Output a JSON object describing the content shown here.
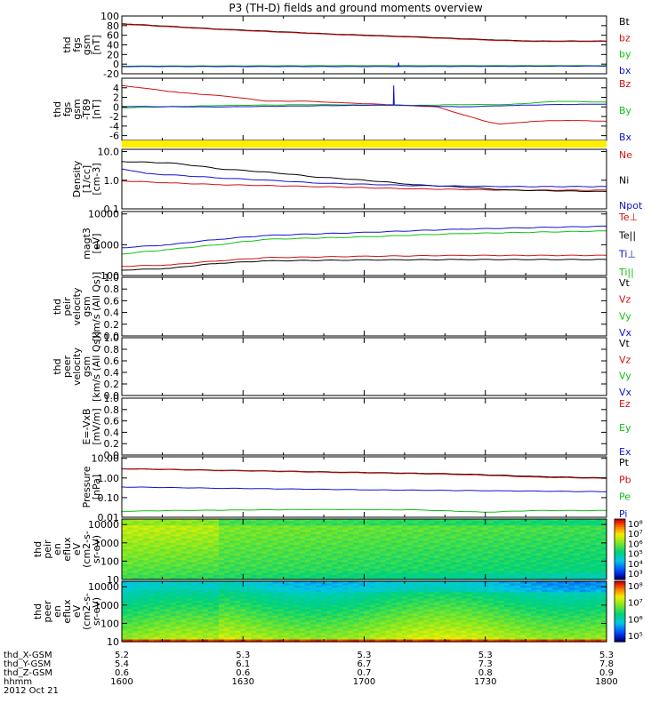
{
  "title": "P3 (TH-D) fields and ground moments overview",
  "colors": {
    "black": "#000000",
    "red": "#d01010",
    "green": "#10c010",
    "blue": "#1010d0",
    "yellow": "#ffee00"
  },
  "chart_data": [
    {
      "id": "fgs",
      "type": "line",
      "ylabel": [
        "thd",
        "fgs",
        "gsm",
        "[nT]"
      ],
      "ylim": [
        -20,
        100
      ],
      "ticks": [
        -20,
        0,
        20,
        40,
        60,
        80,
        100
      ],
      "tick_labels": [
        "-20",
        "0",
        "20",
        "40",
        "60",
        "80",
        "100"
      ],
      "series": [
        {
          "name": "Bt",
          "color": "black",
          "points": [
            [
              0,
              84
            ],
            [
              0.2,
              73
            ],
            [
              0.45,
              62
            ],
            [
              0.6,
              57
            ],
            [
              0.75,
              51
            ],
            [
              0.85,
              48
            ],
            [
              1,
              48
            ]
          ]
        },
        {
          "name": "bz",
          "color": "red",
          "points": [
            [
              0,
              83
            ],
            [
              0.2,
              72
            ],
            [
              0.45,
              61
            ],
            [
              0.6,
              56
            ],
            [
              0.75,
              50
            ],
            [
              0.85,
              47
            ],
            [
              1,
              47
            ]
          ]
        },
        {
          "name": "by",
          "color": "green",
          "points": [
            [
              0,
              -4
            ],
            [
              0.5,
              -3
            ],
            [
              1,
              -3
            ]
          ]
        },
        {
          "name": "bx",
          "color": "blue",
          "points": [
            [
              0,
              -5
            ],
            [
              0.57,
              -5
            ],
            [
              0.571,
              3
            ],
            [
              0.572,
              -5
            ],
            [
              1,
              -4
            ]
          ]
        }
      ]
    },
    {
      "id": "fgs-dt",
      "type": "line",
      "ylabel": [
        "thd",
        "fgs",
        "gsm",
        "-T89",
        "[nT]"
      ],
      "ylim": [
        -7,
        6
      ],
      "ticks": [
        -6,
        -4,
        -2,
        0,
        2,
        4
      ],
      "tick_labels": [
        "-6",
        "-4",
        "-2",
        "0",
        "2",
        "4"
      ],
      "series": [
        {
          "name": "Bz",
          "color": "red",
          "points": [
            [
              0,
              4.5
            ],
            [
              0.07,
              3.6
            ],
            [
              0.12,
              3
            ],
            [
              0.22,
              2.2
            ],
            [
              0.3,
              1.2
            ],
            [
              0.38,
              1.2
            ],
            [
              0.47,
              0.8
            ],
            [
              0.55,
              0.5
            ],
            [
              0.65,
              0
            ],
            [
              0.7,
              -1.5
            ],
            [
              0.75,
              -3
            ],
            [
              0.78,
              -3.6
            ],
            [
              0.85,
              -3
            ],
            [
              0.92,
              -2.8
            ],
            [
              1,
              -3
            ]
          ]
        },
        {
          "name": "By",
          "color": "green",
          "points": [
            [
              0,
              -0.2
            ],
            [
              0.2,
              0.3
            ],
            [
              0.4,
              0.5
            ],
            [
              0.6,
              0.3
            ],
            [
              0.7,
              0.5
            ],
            [
              0.8,
              0.5
            ],
            [
              0.9,
              1.2
            ],
            [
              1,
              1
            ]
          ]
        },
        {
          "name": "Bx",
          "color": "blue",
          "points": [
            [
              0,
              0.1
            ],
            [
              0.2,
              0
            ],
            [
              0.45,
              0.3
            ],
            [
              0.56,
              0.4
            ],
            [
              0.561,
              4.5
            ],
            [
              0.562,
              0.4
            ],
            [
              0.7,
              0
            ],
            [
              0.8,
              0.3
            ],
            [
              0.9,
              0.5
            ],
            [
              1,
              0.6
            ]
          ]
        }
      ]
    },
    {
      "id": "density",
      "type": "line",
      "log": true,
      "ylabel": [
        "Density",
        "[1/cc]",
        "[cm-3]"
      ],
      "ylim": [
        0.1,
        12
      ],
      "ticks": [
        0.1,
        1,
        10
      ],
      "tick_labels": [
        "0.1",
        "1.0",
        "10.0"
      ],
      "series": [
        {
          "name": "Ne",
          "color": "red",
          "points": [
            [
              0,
              0.95
            ],
            [
              0.1,
              0.8
            ],
            [
              0.2,
              0.7
            ],
            [
              0.4,
              0.6
            ],
            [
              0.6,
              0.5
            ],
            [
              0.8,
              0.45
            ],
            [
              1,
              0.45
            ]
          ]
        },
        {
          "name": "Ni",
          "color": "black",
          "points": [
            [
              0,
              4.5
            ],
            [
              0.1,
              4
            ],
            [
              0.2,
              2.5
            ],
            [
              0.4,
              1.3
            ],
            [
              0.6,
              0.7
            ],
            [
              0.8,
              0.45
            ],
            [
              1,
              0.4
            ]
          ]
        },
        {
          "name": "Npot",
          "color": "blue",
          "points": [
            [
              0,
              2.5
            ],
            [
              0.05,
              1.7
            ],
            [
              0.2,
              1.2
            ],
            [
              0.3,
              1
            ],
            [
              0.4,
              0.8
            ],
            [
              0.6,
              0.65
            ],
            [
              0.8,
              0.6
            ],
            [
              1,
              0.6
            ]
          ]
        }
      ]
    },
    {
      "id": "temperature",
      "type": "line",
      "log": true,
      "ylabel": [
        "magt3",
        "[eV]"
      ],
      "ylim": [
        100,
        12000
      ],
      "ticks": [
        100,
        1000,
        10000
      ],
      "tick_labels": [
        "100",
        "1000",
        "10000"
      ],
      "series": [
        {
          "name": "Te⊥",
          "color": "red",
          "points": [
            [
              0,
              200
            ],
            [
              0.1,
              220
            ],
            [
              0.2,
              300
            ],
            [
              0.3,
              380
            ],
            [
              0.5,
              420
            ],
            [
              0.7,
              450
            ],
            [
              1,
              450
            ]
          ]
        },
        {
          "name": "Te||",
          "color": "black",
          "points": [
            [
              0,
              150
            ],
            [
              0.1,
              170
            ],
            [
              0.2,
              250
            ],
            [
              0.3,
              300
            ],
            [
              0.5,
              320
            ],
            [
              0.7,
              330
            ],
            [
              1,
              330
            ]
          ]
        },
        {
          "name": "Ti⊥",
          "color": "blue",
          "points": [
            [
              0,
              800
            ],
            [
              0.1,
              1000
            ],
            [
              0.2,
              1500
            ],
            [
              0.3,
              2000
            ],
            [
              0.5,
              2500
            ],
            [
              0.7,
              3200
            ],
            [
              1,
              4000
            ]
          ]
        },
        {
          "name": "Ti||",
          "color": "green",
          "points": [
            [
              0,
              500
            ],
            [
              0.1,
              700
            ],
            [
              0.2,
              1000
            ],
            [
              0.3,
              1500
            ],
            [
              0.5,
              1800
            ],
            [
              0.7,
              2300
            ],
            [
              1,
              2800
            ]
          ]
        }
      ]
    },
    {
      "id": "vel-ion",
      "type": "line",
      "ylabel": [
        "thd",
        "peir",
        "velocity",
        "gsm",
        "[km/s (All Qs)]"
      ],
      "ylim": [
        0,
        1
      ],
      "ticks": [
        0,
        0.2,
        0.4,
        0.6,
        0.8,
        1
      ],
      "tick_labels": [
        "0.0",
        "0.2",
        "0.4",
        "0.6",
        "0.8",
        "1.0"
      ],
      "series": [
        {
          "name": "Vt",
          "color": "black",
          "points": []
        },
        {
          "name": "Vz",
          "color": "red",
          "points": []
        },
        {
          "name": "Vy",
          "color": "green",
          "points": []
        },
        {
          "name": "Vx",
          "color": "blue",
          "points": []
        }
      ]
    },
    {
      "id": "vel-ele",
      "type": "line",
      "ylabel": [
        "thd",
        "peer",
        "velocity",
        "gsm",
        "[km/s (All Qs)]"
      ],
      "ylim": [
        0,
        1
      ],
      "ticks": [
        0,
        0.2,
        0.4,
        0.6,
        0.8,
        1
      ],
      "tick_labels": [
        "0.0",
        "0.2",
        "0.4",
        "0.6",
        "0.8",
        "1.0"
      ],
      "series": [
        {
          "name": "Vt",
          "color": "black",
          "points": []
        },
        {
          "name": "Vz",
          "color": "red",
          "points": []
        },
        {
          "name": "Vy",
          "color": "green",
          "points": []
        },
        {
          "name": "Vx",
          "color": "blue",
          "points": []
        }
      ]
    },
    {
      "id": "efield",
      "type": "line",
      "ylabel": [
        "E=-VxB",
        "[mV/m]"
      ],
      "ylim": [
        0,
        1
      ],
      "ticks": [
        0,
        0.2,
        0.4,
        0.6,
        0.8,
        1
      ],
      "tick_labels": [
        "0.0",
        "0.2",
        "0.4",
        "0.6",
        "0.8",
        "1.0"
      ],
      "series": [
        {
          "name": "Ez",
          "color": "red",
          "points": []
        },
        {
          "name": "Ey",
          "color": "green",
          "points": []
        },
        {
          "name": "Ex",
          "color": "blue",
          "points": []
        }
      ]
    },
    {
      "id": "pressure",
      "type": "line",
      "log": true,
      "ylabel": [
        "Pressure",
        "[nPa]"
      ],
      "ylim": [
        0.01,
        12
      ],
      "ticks": [
        0.01,
        0.1,
        1,
        10
      ],
      "tick_labels": [
        "0.01",
        "0.10",
        "1.00",
        "10.00"
      ],
      "series": [
        {
          "name": "Pt",
          "color": "black",
          "points": [
            [
              0,
              3
            ],
            [
              0.2,
              2.5
            ],
            [
              0.45,
              2
            ],
            [
              0.7,
              1.6
            ],
            [
              0.85,
              1.2
            ],
            [
              1,
              1
            ]
          ]
        },
        {
          "name": "Pb",
          "color": "red",
          "points": [
            [
              0,
              2.9
            ],
            [
              0.2,
              2.4
            ],
            [
              0.45,
              1.9
            ],
            [
              0.7,
              1.5
            ],
            [
              0.85,
              1.1
            ],
            [
              1,
              0.95
            ]
          ]
        },
        {
          "name": "Pe",
          "color": "green",
          "points": [
            [
              0,
              0.02
            ],
            [
              0.1,
              0.022
            ],
            [
              0.4,
              0.025
            ],
            [
              0.6,
              0.024
            ],
            [
              0.75,
              0.018
            ],
            [
              0.85,
              0.022
            ],
            [
              1,
              0.022
            ]
          ]
        },
        {
          "name": "Pi",
          "color": "blue",
          "points": [
            [
              0,
              0.35
            ],
            [
              0.2,
              0.3
            ],
            [
              0.5,
              0.25
            ],
            [
              0.8,
              0.22
            ],
            [
              1,
              0.2
            ]
          ]
        }
      ]
    },
    {
      "id": "spec-ion",
      "type": "heatmap",
      "ylabel": [
        "thd",
        "peir",
        "en",
        "eflux",
        "eV",
        "(cm2-s-",
        "sr-eV)"
      ],
      "ylim": [
        10,
        20000
      ],
      "ticks": [
        10,
        100,
        1000,
        10000
      ],
      "tick_labels": [
        "10",
        "100",
        "1000",
        "10000"
      ],
      "colorbar_labels": [
        "10⁸",
        "10⁷",
        "10⁶",
        "10⁵",
        "10⁴",
        "10³"
      ]
    },
    {
      "id": "spec-ele",
      "type": "heatmap",
      "ylabel": [
        "thd",
        "peer",
        "en",
        "eflux",
        "eV",
        "(cm2-s-",
        "sr-eV)"
      ],
      "ylim": [
        10,
        20000
      ],
      "ticks": [
        10,
        100,
        1000,
        10000
      ],
      "tick_labels": [
        "10",
        "100",
        "1000",
        "10000"
      ],
      "colorbar_labels": [
        "10⁸",
        "10⁷",
        "10⁶",
        "10⁵"
      ]
    }
  ],
  "xaxis": {
    "row_labels": [
      "thd_X-GSM",
      "thd_Y-GSM",
      "thd_Z-GSM",
      "hhmm",
      "2012 Oct 21"
    ],
    "ticks": [
      {
        "x": 0,
        "vals": [
          "5.2",
          "5.4",
          "0.6",
          "1600"
        ]
      },
      {
        "x": 0.25,
        "vals": [
          "5.3",
          "6.1",
          "0.6",
          "1630"
        ]
      },
      {
        "x": 0.5,
        "vals": [
          "5.3",
          "6.7",
          "0.7",
          "1700"
        ]
      },
      {
        "x": 0.75,
        "vals": [
          "5.3",
          "7.3",
          "0.8",
          "1730"
        ]
      },
      {
        "x": 1,
        "vals": [
          "5.3",
          "7.8",
          "0.9",
          "1800"
        ]
      }
    ]
  }
}
